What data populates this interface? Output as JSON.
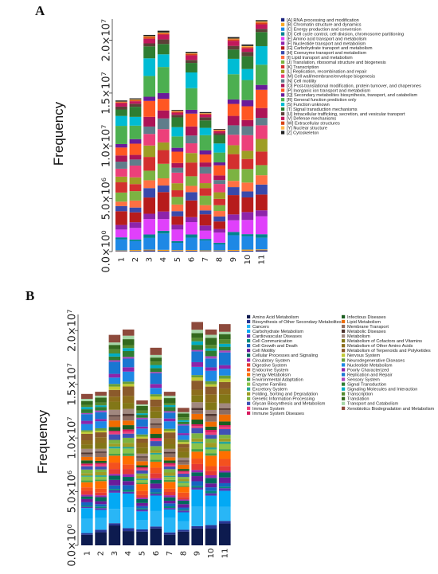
{
  "chart_data": [
    {
      "type": "bar",
      "panel_label": "A",
      "stacked": true,
      "ylabel": "Frequency",
      "xlabel": "",
      "yticks": [
        {
          "value": 0,
          "label": "0.0×10⁰"
        },
        {
          "value": 5000000,
          "label": "5.0×10⁶"
        },
        {
          "value": 10000000,
          "label": "1.0×10⁷"
        },
        {
          "value": 15000000,
          "label": "1.5×10⁷"
        },
        {
          "value": 20000000,
          "label": "2.0×10⁷"
        }
      ],
      "ylim": [
        0,
        22000000
      ],
      "categories": [
        "1",
        "2",
        "3",
        "4",
        "5",
        "6",
        "7",
        "8",
        "9",
        "10",
        "11"
      ],
      "totals": [
        14300000,
        14500000,
        20500000,
        20900000,
        13400000,
        18900000,
        13200000,
        11600000,
        20300000,
        19600000,
        21900000
      ],
      "legend_position": "top-right",
      "series": [
        {
          "name": "[A] RNA processing and modification",
          "color": "#1a237e",
          "weight": 0.4
        },
        {
          "name": "[B] Chromatin structure and dynamics",
          "color": "#f9a825",
          "weight": 0.4
        },
        {
          "name": "[C] Energy production and conversion",
          "color": "#1e88e5",
          "weight": 5.5
        },
        {
          "name": "[D] Cell cycle control, cell division, chromosome partitioning",
          "color": "#00838f",
          "weight": 1.2
        },
        {
          "name": "[E] Amino acid transport and metabolism",
          "color": "#e040fb",
          "weight": 6.0
        },
        {
          "name": "[F] Nucleotide transport and metabolism",
          "color": "#8e24aa",
          "weight": 2.8
        },
        {
          "name": "[G] Carbohydrate transport and metabolism",
          "color": "#b71c1c",
          "weight": 6.8
        },
        {
          "name": "[H] Coenzyme transport and metabolism",
          "color": "#3949ab",
          "weight": 3.2
        },
        {
          "name": "[I] Lipid transport and metabolism",
          "color": "#ff7043",
          "weight": 3.4
        },
        {
          "name": "[J] Translation, ribosomal structure and biogenesis",
          "color": "#7cb342",
          "weight": 5.0
        },
        {
          "name": "[K] Transcription",
          "color": "#d32f2f",
          "weight": 5.2
        },
        {
          "name": "[L] Replication, recombination and repair",
          "color": "#9e9d24",
          "weight": 4.0
        },
        {
          "name": "[M] Cell wall/membrane/envelope biogenesis",
          "color": "#ec407a",
          "weight": 5.6
        },
        {
          "name": "[N] Cell motility",
          "color": "#607d8b",
          "weight": 3.6
        },
        {
          "name": "[O] Post-translational modification, protein turnover, and chaperones",
          "color": "#ad1457",
          "weight": 3.4
        },
        {
          "name": "[P] Inorganic ion transport and metabolism",
          "color": "#ff5722",
          "weight": 6.0
        },
        {
          "name": "[Q] Secondary metabolites biosynthesis, transport, and catabolism",
          "color": "#6a1b9a",
          "weight": 2.2
        },
        {
          "name": "[R] General function prediction only",
          "color": "#4caf50",
          "weight": 9.0
        },
        {
          "name": "[S] Function unknown",
          "color": "#00bcd4",
          "weight": 6.0
        },
        {
          "name": "[T] Signal transduction mechanisms",
          "color": "#2e7d32",
          "weight": 5.0
        },
        {
          "name": "[U] Intracellular trafficking, secretion, and vesicular transport",
          "color": "#5d4037",
          "weight": 1.6
        },
        {
          "name": "[V] Defense mechanisms",
          "color": "#c2185b",
          "weight": 1.8
        },
        {
          "name": "[W] Extracellular structures",
          "color": "#d84315",
          "weight": 0.6
        },
        {
          "name": "[Y] Nuclear structure",
          "color": "#ffb74d",
          "weight": 0.4
        },
        {
          "name": "[Z] Cytoskeleton",
          "color": "#212121",
          "weight": 0.6
        }
      ]
    },
    {
      "type": "bar",
      "panel_label": "B",
      "stacked": true,
      "ylabel": "Frequency",
      "xlabel": "",
      "yticks": [
        {
          "value": 0,
          "label": "0.0×10⁰"
        },
        {
          "value": 5000000,
          "label": "5.0×10⁶"
        },
        {
          "value": 10000000,
          "label": "1.0×10⁷"
        },
        {
          "value": 15000000,
          "label": "1.5×10⁷"
        },
        {
          "value": 20000000,
          "label": "2.0×10⁷"
        }
      ],
      "ylim": [
        0,
        21500000
      ],
      "categories": [
        "1",
        "2",
        "3",
        "4",
        "5",
        "6",
        "7",
        "8",
        "9",
        "10",
        "11"
      ],
      "totals": [
        14100000,
        14300000,
        19600000,
        20100000,
        13500000,
        18400000,
        14300000,
        12800000,
        20800000,
        20100000,
        20600000
      ],
      "legend_position": "top-right",
      "series": [
        {
          "name": "Amino Acid Metabolism",
          "color": "#0d1b4f",
          "weight": 9.5
        },
        {
          "name": "Biosynthesis of Other Secondary Metabolites",
          "color": "#283593",
          "weight": 1.5
        },
        {
          "name": "Cancers",
          "color": "#29b6f6",
          "weight": 9.0
        },
        {
          "name": "Carbohydrate Metabolism",
          "color": "#03a9f4",
          "weight": 7.5
        },
        {
          "name": "Cardiovascular Diseases",
          "color": "#5e35b1",
          "weight": 1.2
        },
        {
          "name": "Cell Communication",
          "color": "#00897b",
          "weight": 1.0
        },
        {
          "name": "Cell Growth and Death",
          "color": "#1565c0",
          "weight": 2.0
        },
        {
          "name": "Cell Motility",
          "color": "#6a1b9a",
          "weight": 2.5
        },
        {
          "name": "Cellular Processes and Signaling",
          "color": "#00695c",
          "weight": 2.5
        },
        {
          "name": "Circulatory System",
          "color": "#9c27b0",
          "weight": 1.2
        },
        {
          "name": "Digestive System",
          "color": "#e53935",
          "weight": 2.5
        },
        {
          "name": "Endocrine System",
          "color": "#f4511e",
          "weight": 3.0
        },
        {
          "name": "Energy Metabolism",
          "color": "#ff6f00",
          "weight": 4.5
        },
        {
          "name": "Environmental Adaptation",
          "color": "#43a047",
          "weight": 1.2
        },
        {
          "name": "Enzyme Families",
          "color": "#8bc34a",
          "weight": 2.5
        },
        {
          "name": "Excretory System",
          "color": "#26a69a",
          "weight": 1.0
        },
        {
          "name": "Folding, Sorting and Degradation",
          "color": "#9e9d24",
          "weight": 2.0
        },
        {
          "name": "Genetic Information Processing",
          "color": "#7cb342",
          "weight": 2.2
        },
        {
          "name": "Glycan Biosynthesis and Metabolism",
          "color": "#3f51b5",
          "weight": 2.5
        },
        {
          "name": "Immune System",
          "color": "#ec407a",
          "weight": 1.2
        },
        {
          "name": "Immune System Diseases",
          "color": "#d81b60",
          "weight": 1.0
        },
        {
          "name": "Infectious Diseases",
          "color": "#1b5e20",
          "weight": 2.0
        },
        {
          "name": "Lipid Metabolism",
          "color": "#ef6c00",
          "weight": 3.0
        },
        {
          "name": "Membrane Transport",
          "color": "#8d6e63",
          "weight": 2.5
        },
        {
          "name": "Metabolic Diseases",
          "color": "#4e342e",
          "weight": 1.0
        },
        {
          "name": "Metabolism",
          "color": "#a1887f",
          "weight": 2.5
        },
        {
          "name": "Metabolism of Cofactors and Vitamins",
          "color": "#827717",
          "weight": 4.0
        },
        {
          "name": "Metabolism of Other Amino Acids",
          "color": "#8d6e1c",
          "weight": 3.5
        },
        {
          "name": "Metabolism of Terpenoids and Polyketides",
          "color": "#8b5a2b",
          "weight": 4.0
        },
        {
          "name": "Nervous System",
          "color": "#c0ca33",
          "weight": 1.5
        },
        {
          "name": "Neurodegenerative Diseases",
          "color": "#689f38",
          "weight": 1.5
        },
        {
          "name": "Nucleotide Metabolism",
          "color": "#1e88e5",
          "weight": 4.5
        },
        {
          "name": "Poorly Characterized",
          "color": "#8e24aa",
          "weight": 2.0
        },
        {
          "name": "Replication and Repair",
          "color": "#1976d2",
          "weight": 5.5
        },
        {
          "name": "Sensory System",
          "color": "#ab47bc",
          "weight": 1.0
        },
        {
          "name": "Signal Transduction",
          "color": "#2e7d32",
          "weight": 2.5
        },
        {
          "name": "Signaling Molecules and Interaction",
          "color": "#00acc1",
          "weight": 1.5
        },
        {
          "name": "Transcription",
          "color": "#558b2f",
          "weight": 2.0
        },
        {
          "name": "Translation",
          "color": "#33691e",
          "weight": 3.0
        },
        {
          "name": "Transport and Catabolism",
          "color": "#a5d6a7",
          "weight": 1.5
        },
        {
          "name": "Xenobiotics Biodegradation and Metabolism",
          "color": "#8d4a3c",
          "weight": 3.5
        }
      ]
    }
  ]
}
